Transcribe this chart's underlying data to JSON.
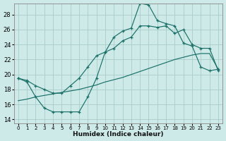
{
  "xlabel": "Humidex (Indice chaleur)",
  "xlim": [
    -0.5,
    23.5
  ],
  "ylim": [
    13.5,
    29.5
  ],
  "xticks": [
    0,
    1,
    2,
    3,
    4,
    5,
    6,
    7,
    8,
    9,
    10,
    11,
    12,
    13,
    14,
    15,
    16,
    17,
    18,
    19,
    20,
    21,
    22,
    23
  ],
  "yticks": [
    14,
    16,
    18,
    20,
    22,
    24,
    26,
    28
  ],
  "bg_color": "#ceeae8",
  "line_color": "#1a7068",
  "grid_color": "#a8ccca",
  "line1_y": [
    19.5,
    19.0,
    17.0,
    15.5,
    15.0,
    15.0,
    15.0,
    15.0,
    17.0,
    19.5,
    23.0,
    25.0,
    25.8,
    26.2,
    29.5,
    29.3,
    27.2,
    26.8,
    26.5,
    24.2,
    23.8,
    21.0,
    20.5,
    20.7
  ],
  "line2_y": [
    19.5,
    19.2,
    18.5,
    18.0,
    17.5,
    17.5,
    18.5,
    19.5,
    21.0,
    22.5,
    23.0,
    23.5,
    24.5,
    25.0,
    26.5,
    26.5,
    26.3,
    26.5,
    25.5,
    26.0,
    24.0,
    23.5,
    23.5,
    20.5
  ],
  "line3_y": [
    16.5,
    16.7,
    17.0,
    17.2,
    17.4,
    17.6,
    17.8,
    18.0,
    18.3,
    18.6,
    19.0,
    19.3,
    19.6,
    20.0,
    20.4,
    20.8,
    21.2,
    21.6,
    22.0,
    22.3,
    22.6,
    22.8,
    22.8,
    20.7
  ]
}
